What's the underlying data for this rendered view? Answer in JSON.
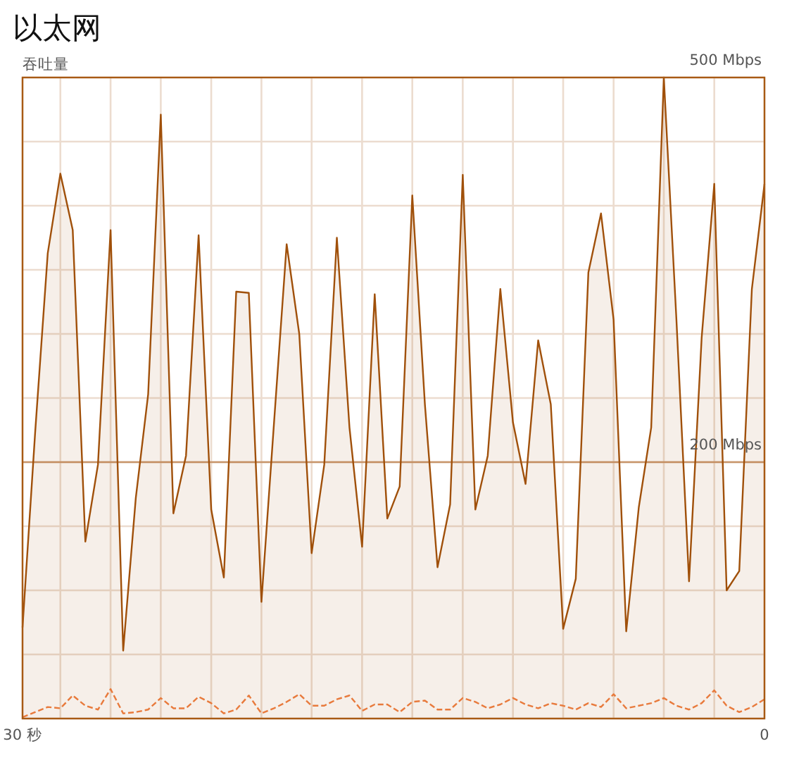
{
  "chart_data": {
    "type": "area",
    "title": "以太网",
    "ylabel": "吞吐量",
    "xlim": [
      30,
      0
    ],
    "ylim": [
      0,
      500
    ],
    "xticks": [
      {
        "value": 30,
        "label": "30 秒"
      },
      {
        "value": 28.47,
        "label": null
      },
      {
        "value": 26.44,
        "label": null
      },
      {
        "value": 24.41,
        "label": null
      },
      {
        "value": 22.37,
        "label": null
      },
      {
        "value": 20.34,
        "label": null
      },
      {
        "value": 18.31,
        "label": null
      },
      {
        "value": 16.27,
        "label": null
      },
      {
        "value": 14.24,
        "label": null
      },
      {
        "value": 12.2,
        "label": null
      },
      {
        "value": 10.17,
        "label": null
      },
      {
        "value": 8.14,
        "label": null
      },
      {
        "value": 6.1,
        "label": null
      },
      {
        "value": 4.07,
        "label": null
      },
      {
        "value": 2.03,
        "label": null
      },
      {
        "value": 0,
        "label": "0"
      }
    ],
    "yticks": [
      {
        "value": 0,
        "label": null
      },
      {
        "value": 50,
        "label": null
      },
      {
        "value": 100,
        "label": null
      },
      {
        "value": 150,
        "label": null
      },
      {
        "value": 200,
        "label": "200 Mbps"
      },
      {
        "value": 250,
        "label": null
      },
      {
        "value": 300,
        "label": null
      },
      {
        "value": 350,
        "label": null
      },
      {
        "value": 400,
        "label": null
      },
      {
        "value": 450,
        "label": null
      },
      {
        "value": 500,
        "label": "500 Mbps"
      }
    ],
    "grid": true,
    "ref_lines": [
      {
        "axis": "y",
        "value": 200,
        "color": "#c8956a"
      }
    ],
    "x": [
      30,
      29.49,
      28.98,
      28.47,
      27.97,
      27.46,
      26.95,
      26.44,
      25.93,
      25.42,
      24.92,
      24.41,
      23.9,
      23.39,
      22.88,
      22.37,
      21.86,
      21.36,
      20.85,
      20.34,
      19.83,
      19.32,
      18.81,
      18.31,
      17.8,
      17.29,
      16.78,
      16.27,
      15.76,
      15.25,
      14.75,
      14.24,
      13.73,
      13.22,
      12.71,
      12.2,
      11.69,
      11.19,
      10.68,
      10.17,
      9.66,
      9.15,
      8.64,
      8.14,
      7.63,
      7.12,
      6.61,
      6.1,
      5.59,
      5.08,
      4.58,
      4.07,
      3.56,
      3.05,
      2.54,
      2.03,
      1.53,
      1.02,
      0.51,
      0
    ],
    "series": [
      {
        "color": "#a0500a",
        "line_style": "solid",
        "values": [
          71,
          223,
          363,
          425,
          381,
          138,
          198,
          381,
          53,
          172,
          253,
          471,
          160,
          205,
          377,
          163,
          110,
          333,
          332,
          91,
          231,
          370,
          300,
          129,
          198,
          375,
          227,
          134,
          331,
          156,
          181,
          408,
          245,
          118,
          167,
          424,
          163,
          205,
          335,
          231,
          183,
          295,
          245,
          70,
          109,
          348,
          394,
          311,
          68,
          165,
          227,
          500,
          311,
          107,
          297,
          417,
          100,
          115,
          335,
          417
        ]
      },
      {
        "type": "line",
        "color": "#e87a3c",
        "line_style": "dashed",
        "values": [
          1,
          5,
          9,
          8,
          18,
          10,
          7,
          23,
          4,
          5,
          7,
          16,
          8,
          8,
          17,
          12,
          4,
          7,
          18,
          4,
          8,
          13,
          19,
          10,
          10,
          15,
          18,
          6,
          11,
          11,
          5,
          13,
          14,
          7,
          7,
          16,
          13,
          8,
          11,
          16,
          11,
          8,
          12,
          10,
          7,
          12,
          9,
          19,
          8,
          10,
          12,
          16,
          10,
          7,
          12,
          22,
          10,
          5,
          9,
          15
        ]
      }
    ]
  }
}
